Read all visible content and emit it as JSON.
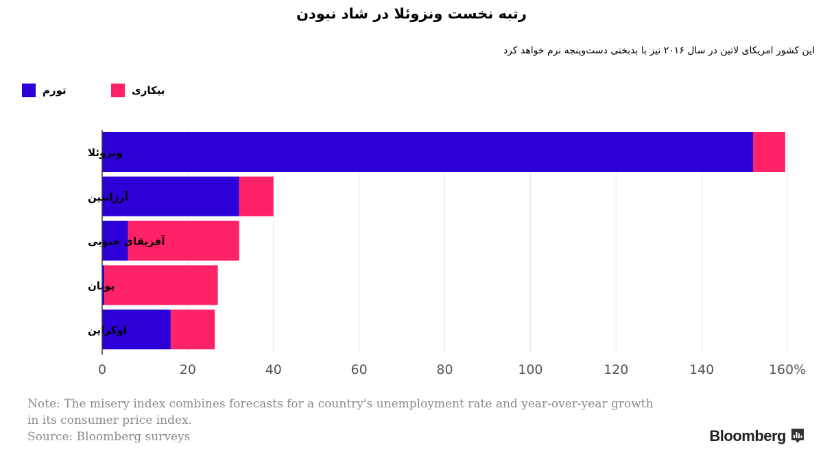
{
  "title": "رتبه نخست ونزوئلا در شاد نبودن",
  "subtitle": "این کشور امریکای لاتین در سال ۲۰۱۶ نیز با بدبختی دست‌وپنجه نرم خواهد کرد",
  "note_line1": "Note: The misery index combines forecasts for a country's unemployment rate and year-over-year growth",
  "note_line2": "in its consumer price index.",
  "source": "Source: Bloomberg surveys",
  "logo_text": "Bloomberg",
  "chart_data": {
    "type": "bar",
    "orientation": "horizontal",
    "stacked": true,
    "categories": [
      "ونزوئلا",
      "آرژانتین",
      "آفریقای جنوبی",
      "یونان",
      "اوکراین"
    ],
    "series": [
      {
        "name": "تورم",
        "color": "#2c00d6",
        "values": [
          152,
          32,
          6,
          0.5,
          16
        ]
      },
      {
        "name": "بیکاری",
        "color": "#ff2266",
        "values": [
          7.5,
          8,
          26,
          26.5,
          10.3
        ]
      }
    ],
    "xlim": [
      0,
      160
    ],
    "xticks": [
      0,
      20,
      40,
      60,
      80,
      100,
      120,
      140,
      160
    ],
    "xtick_labels": [
      "0",
      "20",
      "40",
      "60",
      "80",
      "100",
      "120",
      "140",
      "160%"
    ],
    "grid": "vertical",
    "legend_position": "top-left"
  }
}
